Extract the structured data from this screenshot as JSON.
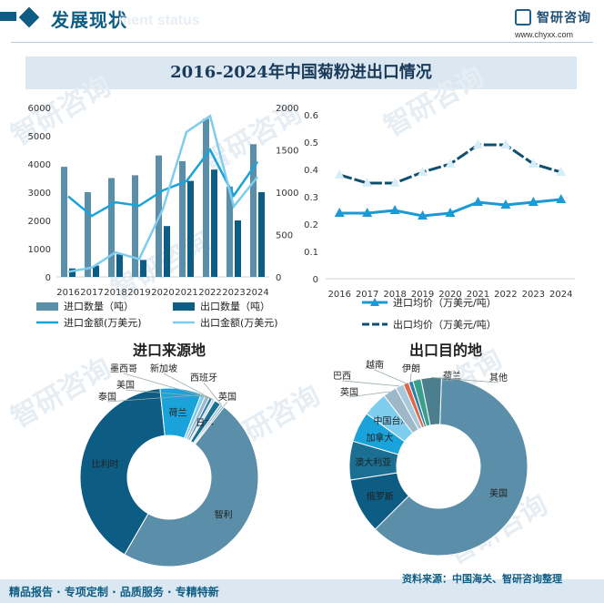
{
  "header": {
    "title": "发展现状",
    "ghost_title": "ment status",
    "logo_name": "智研咨询",
    "logo_url": "www.chyxx.com"
  },
  "banner": {
    "title": "2016-2024年中国菊粉进出口情况"
  },
  "footer": {
    "left": "精品报告 · 专项定制 · 品质服务 · 专精特新",
    "right": "资料来源：中国海关、智研咨询整理"
  },
  "watermark": "智研咨询",
  "colors": {
    "import_qty": "#5b8ea8",
    "export_qty": "#0d5c84",
    "import_amt": "#1aa3db",
    "export_amt": "#7fcdee",
    "import_price": "#1a9ad6",
    "export_price": "#0d4f70",
    "bg_panel": "#dbe7f1"
  },
  "chart_data": [
    {
      "type": "bar",
      "categories": [
        "2016",
        "2017",
        "2018",
        "2019",
        "2020",
        "2021",
        "2022",
        "2023",
        "2024"
      ],
      "series": [
        {
          "name": "进口数量（吨）",
          "kind": "bar",
          "axis": "left",
          "values": [
            3900,
            3000,
            3500,
            3600,
            4300,
            4100,
            5600,
            3200,
            4700
          ]
        },
        {
          "name": "出口数量（吨）",
          "kind": "bar",
          "axis": "left",
          "values": [
            300,
            400,
            800,
            600,
            1800,
            3400,
            3800,
            2000,
            3000
          ]
        },
        {
          "name": "进口金额(万美元)",
          "kind": "line",
          "axis": "right",
          "values": [
            950,
            720,
            880,
            840,
            1020,
            1130,
            1500,
            960,
            1360
          ]
        },
        {
          "name": "出口金额(万美元)",
          "kind": "line",
          "axis": "right",
          "values": [
            60,
            110,
            290,
            210,
            800,
            1710,
            1900,
            830,
            1180
          ]
        }
      ],
      "yticks_left": [
        "0",
        "1000",
        "2000",
        "3000",
        "4000",
        "5000",
        "6000"
      ],
      "yticks_right": [
        "0",
        "500",
        "1000",
        "1500",
        "2000"
      ],
      "ylim_left": [
        0,
        6000
      ],
      "ylim_right": [
        0,
        2000
      ],
      "legend": [
        "进口数量（吨）",
        "出口数量（吨）",
        "进口金额(万美元)",
        "出口金额(万美元)"
      ]
    },
    {
      "type": "line",
      "categories": [
        "2016",
        "2017",
        "2018",
        "2019",
        "2020",
        "2021",
        "2022",
        "2023",
        "2024"
      ],
      "series": [
        {
          "name": "进口均价（万美元/吨）",
          "values": [
            0.24,
            0.24,
            0.25,
            0.23,
            0.24,
            0.28,
            0.27,
            0.28,
            0.29
          ]
        },
        {
          "name": "出口均价（万美元/吨）",
          "values": [
            0.38,
            0.35,
            0.35,
            0.39,
            0.42,
            0.49,
            0.49,
            0.42,
            0.39
          ]
        }
      ],
      "yticks": [
        "0",
        "0.1",
        "0.2",
        "0.3",
        "0.4",
        "0.5",
        "0.6"
      ],
      "ylim": [
        0,
        0.6
      ],
      "legend": [
        "进口均价（万美元/吨）",
        "出口均价（万美元/吨）"
      ]
    },
    {
      "type": "pie",
      "title": "进口来源地",
      "slices": [
        {
          "label": "智利",
          "value": 47.8,
          "color": "#5b8ea8",
          "inside": true
        },
        {
          "label": "比利时",
          "value": 40.0,
          "color": "#0d5c84",
          "inside": true
        },
        {
          "label": "荷兰",
          "value": 7.5,
          "color": "#1aa3db",
          "inside": true
        },
        {
          "label": "泰国",
          "value": 0.8,
          "color": "#7fcdee",
          "inside": false
        },
        {
          "label": "美国",
          "value": 0.8,
          "color": "#9fb8c8",
          "inside": false
        },
        {
          "label": "墨西哥",
          "value": 0.6,
          "color": "#2f7fa8",
          "inside": false
        },
        {
          "label": "新加坡",
          "value": 0.5,
          "color": "#c6dce8",
          "inside": false
        },
        {
          "label": "日本",
          "value": 1.2,
          "color": "#1b6f92",
          "inside": true
        },
        {
          "label": "西班牙",
          "value": 0.5,
          "color": "#a0c4d6",
          "inside": false
        },
        {
          "label": "英国",
          "value": 0.3,
          "color": "#3d8fb5",
          "inside": false
        }
      ]
    },
    {
      "type": "pie",
      "title": "出口目的地",
      "slices": [
        {
          "label": "美国",
          "value": 62.0,
          "color": "#5b8ea8",
          "inside": true
        },
        {
          "label": "俄罗斯",
          "value": 10.0,
          "color": "#0d5c84",
          "inside": true
        },
        {
          "label": "澳大利亚",
          "value": 7.0,
          "color": "#1b6f92",
          "inside": true
        },
        {
          "label": "加拿大",
          "value": 5.5,
          "color": "#1aa3db",
          "inside": true
        },
        {
          "label": "中国台湾",
          "value": 4.5,
          "color": "#7fcdee",
          "inside": true
        },
        {
          "label": "英国",
          "value": 2.5,
          "color": "#9fb8c8",
          "inside": false
        },
        {
          "label": "巴西",
          "value": 1.5,
          "color": "#a7c9db",
          "inside": false
        },
        {
          "label": "越南",
          "value": 1.0,
          "color": "#e0684a",
          "inside": false
        },
        {
          "label": "伊朗",
          "value": 0.8,
          "color": "#2f7fa8",
          "inside": false
        },
        {
          "label": "荷兰",
          "value": 1.5,
          "color": "#3aa08a",
          "inside": false
        },
        {
          "label": "其他",
          "value": 3.7,
          "color": "#4b7f8f",
          "inside": false
        }
      ]
    }
  ]
}
